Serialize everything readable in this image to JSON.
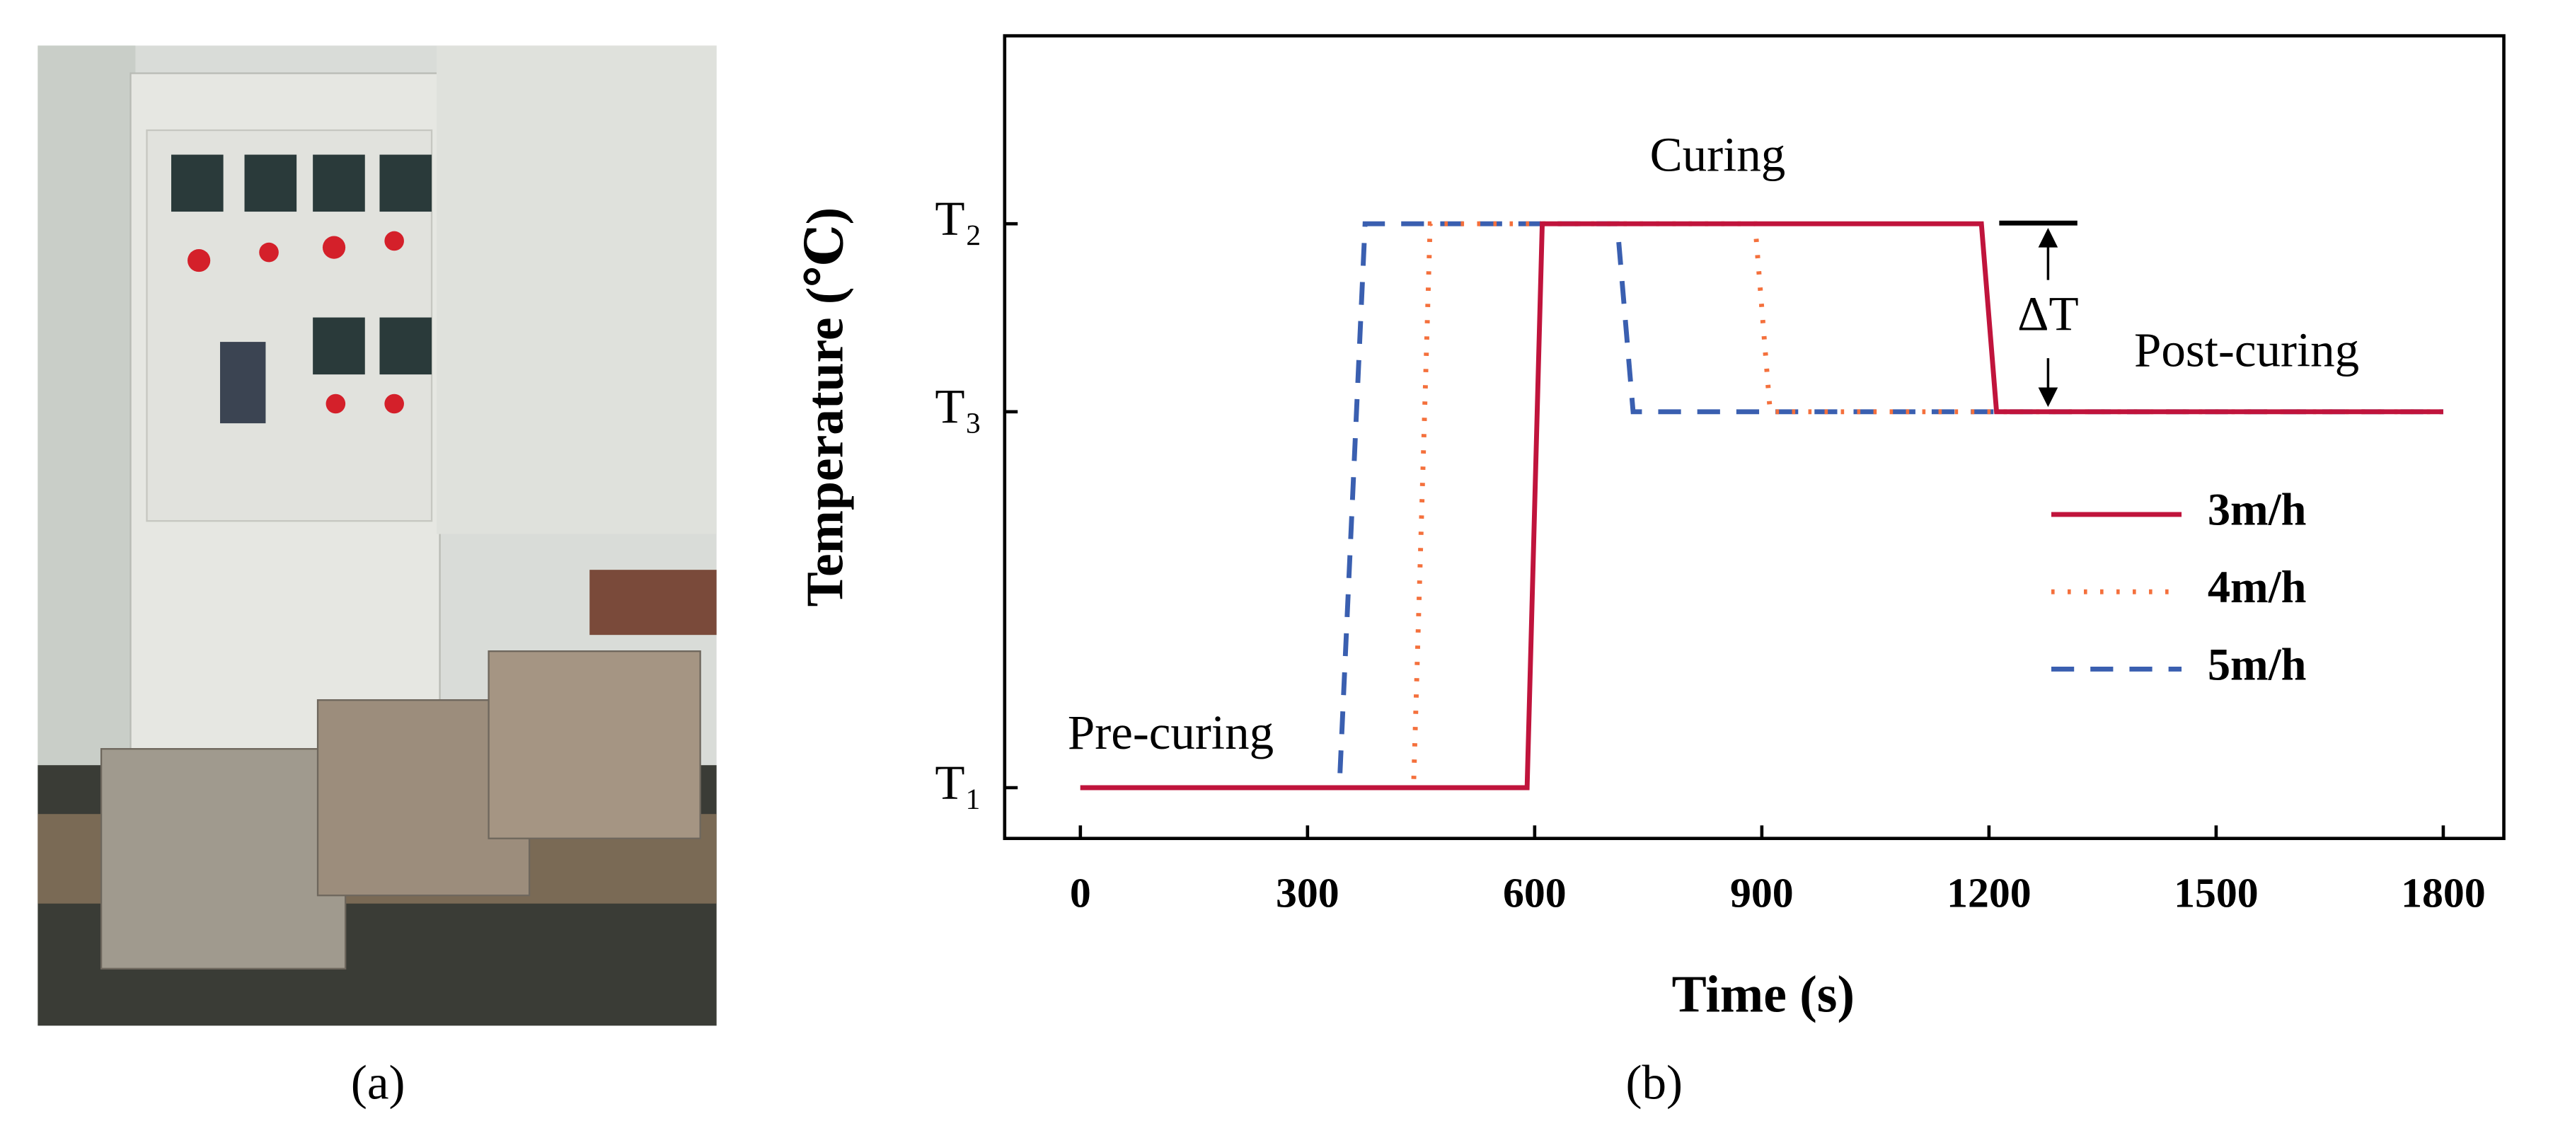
{
  "chart_data": {
    "type": "line",
    "x_label": "Time (s)",
    "y_label": "Temperature (℃)",
    "xlim": [
      -100,
      1880
    ],
    "xticks": [
      0,
      300,
      600,
      900,
      1200,
      1500,
      1800
    ],
    "ylim": [
      -0.27,
      4
    ],
    "yticks": [
      {
        "value": 0,
        "label": "T₁"
      },
      {
        "value": 2,
        "label": "T₃"
      },
      {
        "value": 3,
        "label": "T₂"
      }
    ],
    "series": [
      {
        "name": "3m/h",
        "color": "#c0143c",
        "style": "solid",
        "x": [
          0,
          590,
          610,
          1190,
          1210,
          1800
        ],
        "values": [
          0,
          0,
          3,
          3,
          2,
          2
        ]
      },
      {
        "name": "4m/h",
        "color": "#f4703c",
        "style": "dotted",
        "x": [
          0,
          440,
          462,
          891,
          911,
          1800
        ],
        "values": [
          0,
          0,
          3,
          3,
          2,
          2
        ]
      },
      {
        "name": "5m/h",
        "color": "#3a5fb0",
        "style": "dashed",
        "x": [
          0,
          342,
          376,
          709,
          730,
          1800
        ],
        "values": [
          0,
          0,
          3,
          3,
          2,
          2
        ]
      }
    ],
    "annotations": {
      "curing": "Curing",
      "pre_curing": "Pre-curing",
      "post_curing": "Post-curing",
      "delta_t": "ΔT"
    },
    "captions": {
      "a": "(a)",
      "b": "(b)"
    }
  }
}
